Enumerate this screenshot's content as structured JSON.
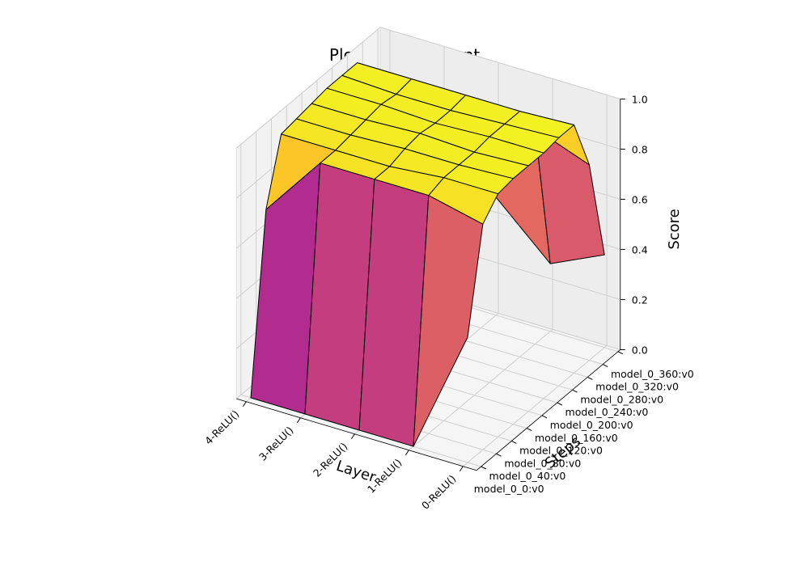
{
  "chart_data": {
    "type": "surface3d",
    "title": "Plot - goal_in_front",
    "xlabel": "Layer",
    "ylabel": "Steps",
    "zlabel": "Score",
    "x_categories": [
      "0-ReLU()",
      "1-ReLU()",
      "2-ReLU()",
      "3-ReLU()",
      "4-ReLU()"
    ],
    "y_categories": [
      "model_0_0:v0",
      "model_0_40:v0",
      "model_0_80:v0",
      "model_0_120:v0",
      "model_0_160:v0",
      "model_0_200:v0",
      "model_0_240:v0",
      "model_0_280:v0",
      "model_0_320:v0",
      "model_0_360:v0"
    ],
    "z_ticks": [
      "0.0",
      "0.2",
      "0.4",
      "0.6",
      "0.8",
      "1.0"
    ],
    "zlim": [
      0,
      1
    ],
    "colormap": "plasma",
    "grid": true,
    "values": [
      [
        0.5,
        0.0,
        0.0,
        0.0,
        0.0
      ],
      [
        0.9,
        0.95,
        0.95,
        0.95,
        0.7
      ],
      [
        0.97,
        0.97,
        0.95,
        0.95,
        0.95
      ],
      [
        0.98,
        0.97,
        0.97,
        0.96,
        0.96
      ],
      [
        0.98,
        0.97,
        0.98,
        0.97,
        0.97
      ],
      [
        0.98,
        0.98,
        0.97,
        0.98,
        0.98
      ],
      [
        0.99,
        0.98,
        0.97,
        0.97,
        0.98
      ],
      [
        0.99,
        0.98,
        0.98,
        0.98,
        0.98
      ],
      [
        0.78,
        0.86,
        0.88,
        0.85,
        0.7
      ],
      [
        0.37,
        0.27,
        0.47,
        0.63,
        0.28
      ]
    ]
  }
}
